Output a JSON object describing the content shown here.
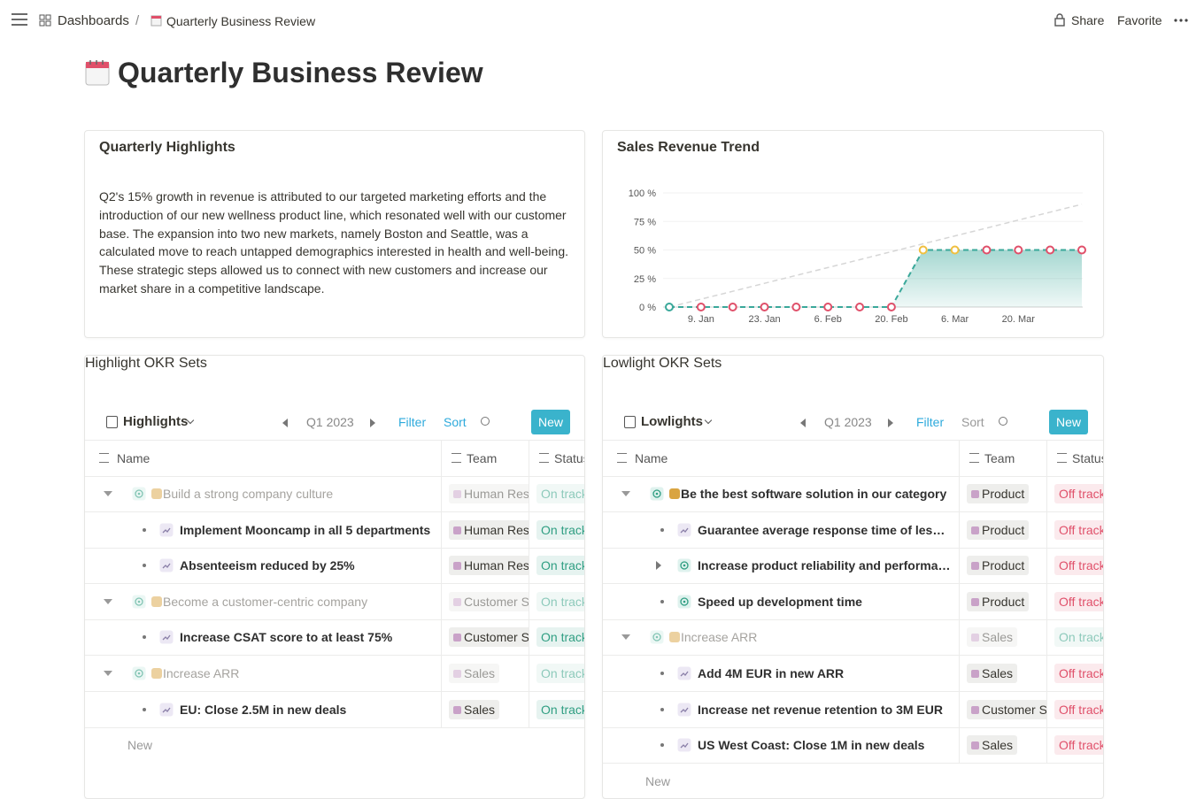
{
  "topbar": {
    "breadcrumb": [
      "Dashboards",
      "Quarterly Business Review"
    ],
    "separator": "/",
    "actions": [
      "Share",
      "Favorite"
    ]
  },
  "page": {
    "title": "Quarterly Business Review"
  },
  "highlights_card": {
    "title": "Quarterly Highlights",
    "body": "Q2's 15% growth in revenue is attributed to our targeted marketing efforts and the introduction of our new wellness product line, which resonated well with our customer base. The expansion into two new markets, namely Boston and Seattle, was a calculated move to reach untapped demographics interested in health and well-being. These strategic steps allowed us to connect with new customers and increase our market share in a competitive landscape."
  },
  "chart_data": {
    "type": "line",
    "title": "Sales Revenue Trend",
    "categories": [
      null,
      "9. Jan",
      null,
      "23. Jan",
      null,
      "6. Feb",
      null,
      "20. Feb",
      null,
      "6. Mar",
      null,
      "20. Mar",
      null,
      null
    ],
    "series": [
      {
        "color": "#d6d6d6",
        "dashed": true,
        "markers": false,
        "area": false,
        "values": [
          0,
          6.9,
          13.8,
          20.8,
          27.7,
          34.6,
          41.5,
          48.5,
          55.4,
          62.3,
          69.2,
          76.2,
          83.1,
          90
        ]
      },
      {
        "color": "#3aa89a",
        "dashed": true,
        "markers": true,
        "area": true,
        "values": [
          0,
          0,
          0,
          0,
          0,
          0,
          0,
          0,
          50,
          50,
          50,
          50,
          50,
          50
        ],
        "marker_colors": [
          "#3aa89a",
          "#e0506a",
          "#e0506a",
          "#e0506a",
          "#e0506a",
          "#e0506a",
          "#e0506a",
          "#e0506a",
          "#f0c040",
          "#f0c040",
          "#e0506a",
          "#e0506a",
          "#e0506a",
          "#e0506a"
        ]
      }
    ],
    "ylim": [
      0,
      100
    ],
    "yticks": [
      {
        "value": 0,
        "label": "0 %"
      },
      {
        "value": 25,
        "label": "25 %"
      },
      {
        "value": 50,
        "label": "50 %"
      },
      {
        "value": 75,
        "label": "75 %"
      },
      {
        "value": 100,
        "label": "100 %"
      }
    ],
    "grid": true
  },
  "okr_tables": [
    {
      "title": "Highlight OKR Sets",
      "view": "Highlights",
      "period": "Q1 2023",
      "filter": "Filter",
      "sort": "Sort",
      "sort_active": true,
      "new_button": "New",
      "columns": [
        "Name",
        "Team",
        "Status"
      ],
      "new_row": "New",
      "groups": [
        {
          "name": "Build a strong company culture",
          "team": "Human Resources",
          "status": "On track",
          "status_color": "#2f9e82",
          "muted": true,
          "children": [
            {
              "name": "Implement Mooncamp in all 5 departments",
              "team": "Human Resources",
              "status": "On track",
              "status_color": "#2f9e82",
              "kind": "key_result",
              "expandable": false
            },
            {
              "name": "Absenteeism reduced by 25%",
              "team": "Human Resources",
              "status": "On track",
              "status_color": "#2f9e82",
              "kind": "key_result",
              "expandable": false
            }
          ]
        },
        {
          "name": "Become a customer-centric company",
          "team": "Customer Success",
          "status": "On track",
          "status_color": "#2f9e82",
          "muted": true,
          "children": [
            {
              "name": "Increase CSAT score to at least 75%",
              "team": "Customer Success",
              "status": "On track",
              "status_color": "#2f9e82",
              "kind": "key_result",
              "expandable": false
            }
          ]
        },
        {
          "name": "Increase ARR",
          "team": "Sales",
          "status": "On track",
          "status_color": "#2f9e82",
          "muted": true,
          "children": [
            {
              "name": "EU: Close 2.5M in new deals",
              "team": "Sales",
              "status": "On track",
              "status_color": "#2f9e82",
              "kind": "key_result",
              "expandable": false
            }
          ]
        }
      ]
    },
    {
      "title": "Lowlight OKR Sets",
      "view": "Lowlights",
      "period": "Q1 2023",
      "filter": "Filter",
      "sort": "Sort",
      "sort_active": false,
      "new_button": "New",
      "columns": [
        "Name",
        "Team",
        "Status"
      ],
      "new_row": "New",
      "groups": [
        {
          "name": "Be the best software solution in our category",
          "team": "Product",
          "status": "Off track",
          "status_color": "#e0506a",
          "muted": false,
          "children": [
            {
              "name": "Guarantee average response time of less …",
              "team": "Product",
              "status": "Off track",
              "status_color": "#e0506a",
              "kind": "key_result",
              "expandable": false
            },
            {
              "name": "Increase product reliability and performan…",
              "team": "Product",
              "status": "Off track",
              "status_color": "#e0506a",
              "kind": "objective",
              "expandable": true
            },
            {
              "name": "Speed up development time",
              "team": "Product",
              "status": "Off track",
              "status_color": "#e0506a",
              "kind": "objective",
              "expandable": false
            }
          ]
        },
        {
          "name": "Increase ARR",
          "team": "Sales",
          "status": "On track",
          "status_color": "#2f9e82",
          "muted": true,
          "children": [
            {
              "name": "Add 4M EUR in new ARR",
              "team": "Sales",
              "status": "Off track",
              "status_color": "#e0506a",
              "kind": "key_result",
              "expandable": false
            },
            {
              "name": "Increase net revenue retention to 3M EUR",
              "team": "Customer Success",
              "status": "Off track",
              "status_color": "#e0506a",
              "kind": "key_result",
              "expandable": false
            },
            {
              "name": "US West Coast: Close 1M in new deals",
              "team": "Sales",
              "status": "Off track",
              "status_color": "#e0506a",
              "kind": "key_result",
              "expandable": false
            }
          ]
        }
      ]
    }
  ]
}
